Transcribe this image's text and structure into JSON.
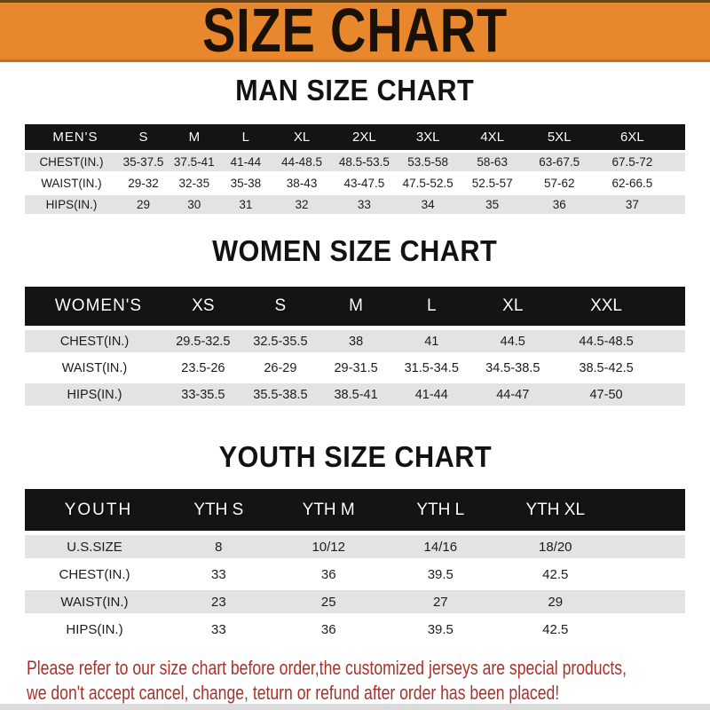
{
  "banner": {
    "title": "SIZE CHART"
  },
  "colors": {
    "banner_bg": "#E8872B",
    "banner_text": "#191106",
    "header_bar_bg": "#141414",
    "header_bar_text": "#FFFFFF",
    "row_alt_bg": "#E3E3E3",
    "row_bg": "#FFFFFF",
    "footer_text": "#A9322A"
  },
  "chart_data": [
    {
      "type": "table",
      "title": "MAN SIZE CHART",
      "corner_label": "MEN'S",
      "columns": [
        "S",
        "M",
        "L",
        "XL",
        "2XL",
        "3XL",
        "4XL",
        "5XL",
        "6XL"
      ],
      "rows": [
        {
          "label": "CHEST(IN.)",
          "values": [
            "35-37.5",
            "37.5-41",
            "41-44",
            "44-48.5",
            "48.5-53.5",
            "53.5-58",
            "58-63",
            "63-67.5",
            "67.5-72"
          ]
        },
        {
          "label": "WAIST(IN.)",
          "values": [
            "29-32",
            "32-35",
            "35-38",
            "38-43",
            "43-47.5",
            "47.5-52.5",
            "52.5-57",
            "57-62",
            "62-66.5"
          ]
        },
        {
          "label": "HIPS(IN.)",
          "values": [
            "29",
            "30",
            "31",
            "32",
            "33",
            "34",
            "35",
            "36",
            "37"
          ]
        }
      ]
    },
    {
      "type": "table",
      "title": "WOMEN SIZE CHART",
      "corner_label": "WOMEN'S",
      "columns": [
        "XS",
        "S",
        "M",
        "L",
        "XL",
        "XXL"
      ],
      "rows": [
        {
          "label": "CHEST(IN.)",
          "values": [
            "29.5-32.5",
            "32.5-35.5",
            "38",
            "41",
            "44.5",
            "44.5-48.5"
          ]
        },
        {
          "label": "WAIST(IN.)",
          "values": [
            "23.5-26",
            "26-29",
            "29-31.5",
            "31.5-34.5",
            "34.5-38.5",
            "38.5-42.5"
          ]
        },
        {
          "label": "HIPS(IN.)",
          "values": [
            "33-35.5",
            "35.5-38.5",
            "38.5-41",
            "41-44",
            "44-47",
            "47-50"
          ]
        }
      ]
    },
    {
      "type": "table",
      "title": "YOUTH SIZE CHART",
      "corner_label": "YOUTH",
      "columns": [
        "YTH S",
        "YTH M",
        "YTH L",
        "YTH XL"
      ],
      "rows": [
        {
          "label": "U.S.SIZE",
          "values": [
            "8",
            "10/12",
            "14/16",
            "18/20"
          ]
        },
        {
          "label": "CHEST(IN.)",
          "values": [
            "33",
            "36",
            "39.5",
            "42.5"
          ]
        },
        {
          "label": "WAIST(IN.)",
          "values": [
            "23",
            "25",
            "27",
            "29"
          ]
        },
        {
          "label": "HIPS(IN.)",
          "values": [
            "33",
            "36",
            "39.5",
            "42.5"
          ]
        }
      ]
    }
  ],
  "footer": {
    "line1": "Please refer to our size chart before order,the customized jerseys are special products,",
    "line2": "we don't accept cancel, change, teturn or refund after order has been placed!"
  }
}
